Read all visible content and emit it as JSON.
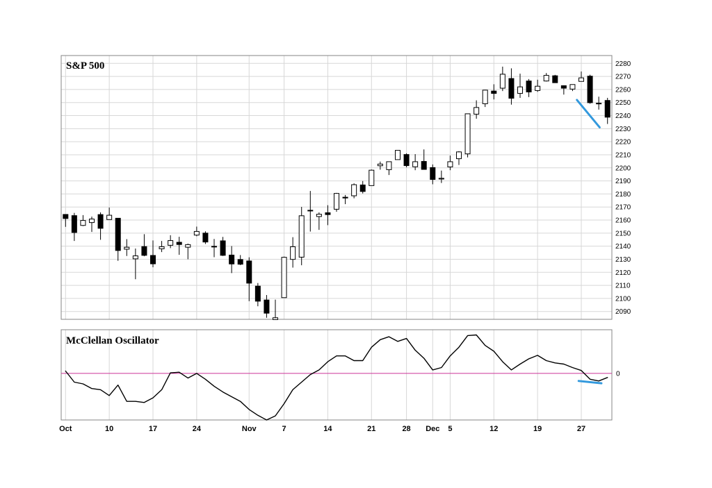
{
  "colors": {
    "background": "#ffffff",
    "grid": "#d7d7d7",
    "panel_border": "#858585",
    "candle_up_fill": "#ffffff",
    "candle_down_fill": "#000000",
    "candle_stroke": "#000000",
    "oscillator_line": "#000000",
    "zero_line": "#cc3399",
    "annotation": "#3399dd",
    "text": "#000000"
  },
  "price_panel": {
    "title": "S&P 500"
  },
  "oscillator_panel": {
    "title": "McClellan Oscillator",
    "zero_label": "0"
  },
  "x_axis": {
    "tick_labels": [
      "Oct",
      "10",
      "17",
      "24",
      "Nov",
      "7",
      "14",
      "21",
      "28",
      "Dec",
      "5",
      "12",
      "19",
      "27"
    ],
    "tick_indices": [
      0,
      5,
      10,
      15,
      21,
      25,
      30,
      35,
      39,
      42,
      44,
      49,
      54,
      59
    ]
  },
  "y_axis": {
    "tick_labels": [
      "2280",
      "2270",
      "2260",
      "2250",
      "2240",
      "2230",
      "2220",
      "2210",
      "2200",
      "2190",
      "2180",
      "2170",
      "2160",
      "2150",
      "2140",
      "2130",
      "2120",
      "2110",
      "2100",
      "2090"
    ]
  },
  "chart_data": [
    {
      "type": "candlestick",
      "title": "S&P 500",
      "ylim": [
        2084,
        2286
      ],
      "dates": [
        "Oct 3",
        "Oct 4",
        "Oct 5",
        "Oct 6",
        "Oct 7",
        "Oct 10",
        "Oct 11",
        "Oct 12",
        "Oct 13",
        "Oct 14",
        "Oct 17",
        "Oct 18",
        "Oct 19",
        "Oct 20",
        "Oct 21",
        "Oct 24",
        "Oct 25",
        "Oct 26",
        "Oct 27",
        "Oct 28",
        "Oct 31",
        "Nov 1",
        "Nov 2",
        "Nov 3",
        "Nov 4",
        "Nov 7",
        "Nov 8",
        "Nov 9",
        "Nov 10",
        "Nov 11",
        "Nov 14",
        "Nov 15",
        "Nov 16",
        "Nov 17",
        "Nov 18",
        "Nov 21",
        "Nov 22",
        "Nov 23",
        "Nov 25",
        "Nov 28",
        "Nov 29",
        "Nov 30",
        "Dec 1",
        "Dec 2",
        "Dec 5",
        "Dec 6",
        "Dec 7",
        "Dec 8",
        "Dec 9",
        "Dec 12",
        "Dec 13",
        "Dec 14",
        "Dec 15",
        "Dec 16",
        "Dec 19",
        "Dec 20",
        "Dec 21",
        "Dec 22",
        "Dec 23",
        "Dec 27",
        "Dec 28",
        "Dec 29",
        "Dec 30"
      ],
      "open": [
        2164.3,
        2163.4,
        2155.9,
        2158.1,
        2164.2,
        2160.4,
        2161.4,
        2137.7,
        2130.3,
        2139.7,
        2132.9,
        2138.0,
        2140.7,
        2143.0,
        2139.2,
        2148.5,
        2150.0,
        2139.9,
        2144.1,
        2133.2,
        2129.8,
        2128.7,
        2109.4,
        2098.8,
        2083.8,
        2100.6,
        2129.9,
        2131.6,
        2167.5,
        2162.7,
        2165.6,
        2168.3,
        2177.5,
        2178.6,
        2186.9,
        2186.4,
        2201.6,
        2198.6,
        2206.3,
        2210.2,
        2200.8,
        2204.9,
        2200.2,
        2191.4,
        2200.7,
        2207.0,
        2210.7,
        2241.1,
        2249.1,
        2258.8,
        2261.0,
        2268.4,
        2257.0,
        2266.5,
        2259.2,
        2266.5,
        2270.5,
        2262.9,
        2260.3,
        2266.2,
        2270.2,
        2249.5,
        2251.6
      ],
      "high": [
        2164.3,
        2165.5,
        2163.8,
        2162.7,
        2165.9,
        2169.6,
        2161.6,
        2145.4,
        2138.2,
        2149.2,
        2144.4,
        2144.0,
        2148.4,
        2147.2,
        2142.0,
        2155.0,
        2151.4,
        2145.5,
        2147.1,
        2140.1,
        2133.2,
        2131.5,
        2111.8,
        2102.6,
        2099.1,
        2132.0,
        2146.9,
        2170.1,
        2182.3,
        2165.9,
        2171.4,
        2180.8,
        2179.2,
        2188.1,
        2189.9,
        2198.7,
        2204.8,
        2204.8,
        2213.4,
        2211.1,
        2210.5,
        2214.1,
        2202.6,
        2197.9,
        2209.4,
        2212.8,
        2241.6,
        2251.7,
        2259.8,
        2264.0,
        2277.5,
        2276.2,
        2272.1,
        2268.0,
        2267.5,
        2272.6,
        2271.2,
        2263.2,
        2263.8,
        2273.8,
        2271.3,
        2254.5,
        2253.6
      ],
      "low": [
        2154.8,
        2144.0,
        2155.4,
        2150.9,
        2144.9,
        2160.4,
        2128.8,
        2132.5,
        2114.7,
        2132.3,
        2123.9,
        2135.5,
        2138.5,
        2133.4,
        2130.0,
        2147.6,
        2141.7,
        2131.6,
        2132.5,
        2119.4,
        2125.5,
        2097.9,
        2094.0,
        2085.2,
        2083.8,
        2100.6,
        2123.6,
        2125.4,
        2151.2,
        2152.5,
        2156.1,
        2166.4,
        2172.2,
        2176.7,
        2180.4,
        2186.4,
        2198.6,
        2194.5,
        2206.3,
        2200.4,
        2198.2,
        2198.8,
        2187.4,
        2188.4,
        2198.2,
        2202.2,
        2208.0,
        2237.6,
        2246.6,
        2252.4,
        2258.8,
        2248.4,
        2253.6,
        2254.2,
        2258.2,
        2266.1,
        2265.2,
        2256.1,
        2258.8,
        2266.2,
        2249.1,
        2244.6,
        2233.6
      ],
      "close": [
        2161.2,
        2150.5,
        2159.7,
        2160.8,
        2153.7,
        2163.7,
        2136.7,
        2139.2,
        2132.6,
        2133.0,
        2126.5,
        2139.6,
        2144.3,
        2141.3,
        2141.2,
        2151.3,
        2143.2,
        2139.4,
        2133.0,
        2126.4,
        2126.2,
        2111.7,
        2097.9,
        2088.7,
        2085.2,
        2131.5,
        2139.6,
        2163.3,
        2167.5,
        2164.5,
        2164.2,
        2180.4,
        2176.9,
        2187.1,
        2181.9,
        2198.2,
        2202.9,
        2204.7,
        2213.4,
        2201.7,
        2204.7,
        2198.8,
        2191.1,
        2192.0,
        2204.7,
        2212.2,
        2241.4,
        2246.2,
        2259.5,
        2257.0,
        2271.7,
        2253.3,
        2262.0,
        2258.1,
        2262.5,
        2270.8,
        2265.2,
        2261.0,
        2263.8,
        2268.9,
        2249.9,
        2249.3,
        2238.8
      ]
    },
    {
      "type": "line",
      "title": "McClellan Oscillator",
      "ylim": [
        -80,
        75
      ],
      "zero_line": 0,
      "values": [
        4,
        -15,
        -18,
        -26,
        -28,
        -38,
        -20,
        -48,
        -48,
        -50,
        -42,
        -28,
        1,
        2,
        -8,
        0,
        -10,
        -22,
        -32,
        -40,
        -48,
        -62,
        -72,
        -80,
        -73,
        -52,
        -28,
        -15,
        -2,
        6,
        20,
        30,
        30,
        22,
        22,
        45,
        58,
        63,
        55,
        60,
        40,
        26,
        6,
        10,
        30,
        45,
        65,
        66,
        48,
        38,
        20,
        6,
        16,
        25,
        31,
        22,
        18,
        16,
        10,
        5,
        -10,
        -13,
        -7
      ]
    }
  ],
  "annotations": [
    {
      "panel": "price",
      "type": "trendline",
      "x1_index": 59.0,
      "y1_value": 2252,
      "x2_index": 61.6,
      "y2_value": 2231
    },
    {
      "panel": "oscillator",
      "type": "trendline",
      "x1_index": 59.2,
      "y1_value": -13,
      "x2_index": 61.8,
      "y2_value": -17
    }
  ]
}
